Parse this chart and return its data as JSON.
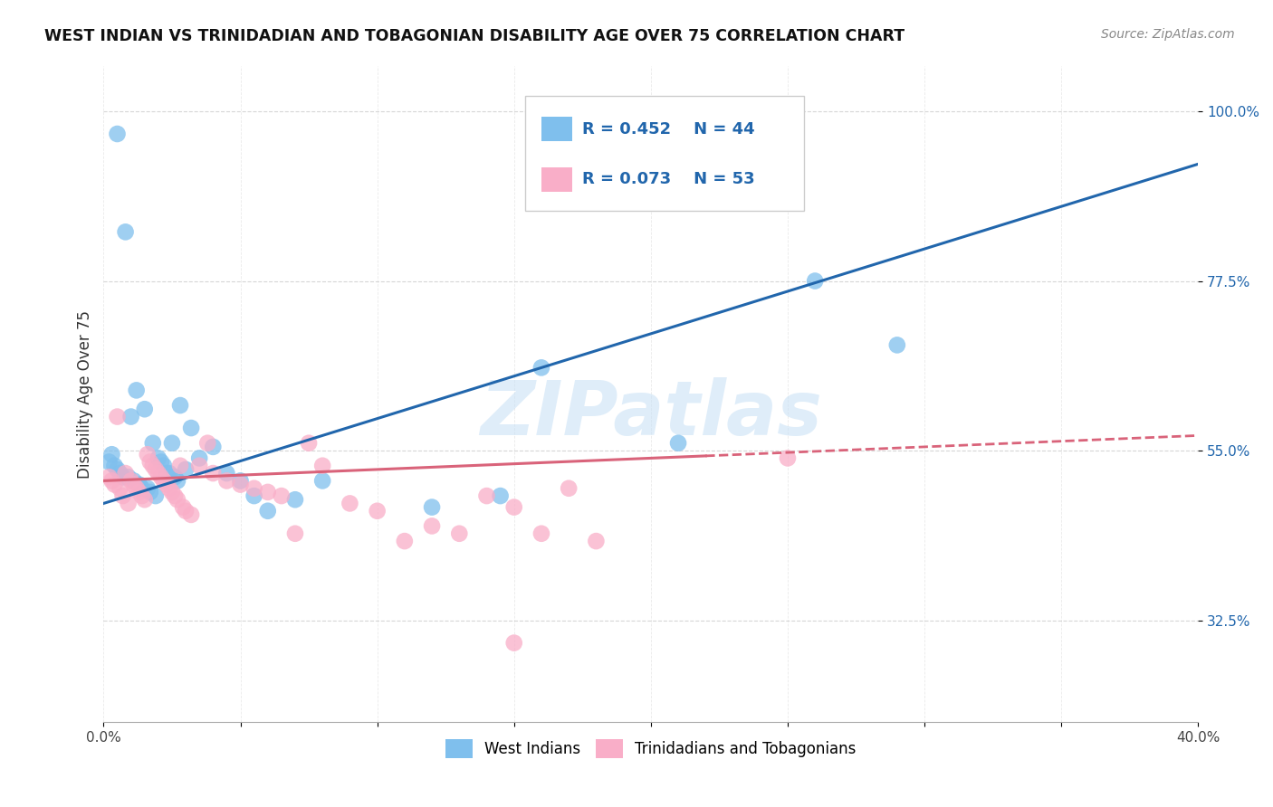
{
  "title": "WEST INDIAN VS TRINIDADIAN AND TOBAGONIAN DISABILITY AGE OVER 75 CORRELATION CHART",
  "source": "Source: ZipAtlas.com",
  "ylabel": "Disability Age Over 75",
  "yticks": [
    0.325,
    0.55,
    0.775,
    1.0
  ],
  "ytick_labels": [
    "32.5%",
    "55.0%",
    "77.5%",
    "100.0%"
  ],
  "blue_color": "#7fbfed",
  "pink_color": "#f9aec8",
  "blue_line_color": "#2166ac",
  "pink_line_color": "#d9637a",
  "watermark_color": "#c5dff5",
  "blue_scatter_x": [
    0.002,
    0.003,
    0.004,
    0.005,
    0.005,
    0.006,
    0.007,
    0.008,
    0.009,
    0.01,
    0.011,
    0.012,
    0.013,
    0.014,
    0.015,
    0.016,
    0.017,
    0.018,
    0.019,
    0.02,
    0.021,
    0.022,
    0.023,
    0.024,
    0.025,
    0.026,
    0.027,
    0.028,
    0.03,
    0.032,
    0.035,
    0.04,
    0.045,
    0.05,
    0.055,
    0.06,
    0.07,
    0.08,
    0.12,
    0.145,
    0.16,
    0.21,
    0.26,
    0.29
  ],
  "blue_scatter_y": [
    0.535,
    0.545,
    0.53,
    0.525,
    0.97,
    0.52,
    0.515,
    0.84,
    0.515,
    0.595,
    0.51,
    0.63,
    0.505,
    0.5,
    0.605,
    0.5,
    0.495,
    0.56,
    0.49,
    0.54,
    0.535,
    0.53,
    0.52,
    0.52,
    0.56,
    0.515,
    0.51,
    0.61,
    0.525,
    0.58,
    0.54,
    0.555,
    0.52,
    0.51,
    0.49,
    0.47,
    0.485,
    0.51,
    0.475,
    0.49,
    0.66,
    0.56,
    0.775,
    0.69
  ],
  "pink_scatter_x": [
    0.002,
    0.003,
    0.004,
    0.005,
    0.006,
    0.007,
    0.008,
    0.009,
    0.01,
    0.011,
    0.012,
    0.013,
    0.014,
    0.015,
    0.016,
    0.017,
    0.018,
    0.019,
    0.02,
    0.021,
    0.022,
    0.023,
    0.024,
    0.025,
    0.026,
    0.027,
    0.028,
    0.029,
    0.03,
    0.032,
    0.035,
    0.038,
    0.04,
    0.045,
    0.05,
    0.055,
    0.06,
    0.065,
    0.07,
    0.075,
    0.08,
    0.09,
    0.1,
    0.11,
    0.12,
    0.13,
    0.14,
    0.15,
    0.16,
    0.17,
    0.18,
    0.25,
    0.15
  ],
  "pink_scatter_y": [
    0.515,
    0.51,
    0.505,
    0.595,
    0.5,
    0.49,
    0.52,
    0.48,
    0.51,
    0.505,
    0.5,
    0.495,
    0.49,
    0.485,
    0.545,
    0.535,
    0.53,
    0.525,
    0.52,
    0.515,
    0.51,
    0.505,
    0.5,
    0.495,
    0.49,
    0.485,
    0.53,
    0.475,
    0.47,
    0.465,
    0.53,
    0.56,
    0.52,
    0.51,
    0.505,
    0.5,
    0.495,
    0.49,
    0.44,
    0.56,
    0.53,
    0.48,
    0.47,
    0.43,
    0.45,
    0.44,
    0.49,
    0.475,
    0.44,
    0.5,
    0.43,
    0.54,
    0.295
  ],
  "xmin": 0.0,
  "xmax": 0.4,
  "ymin": 0.19,
  "ymax": 1.06
}
